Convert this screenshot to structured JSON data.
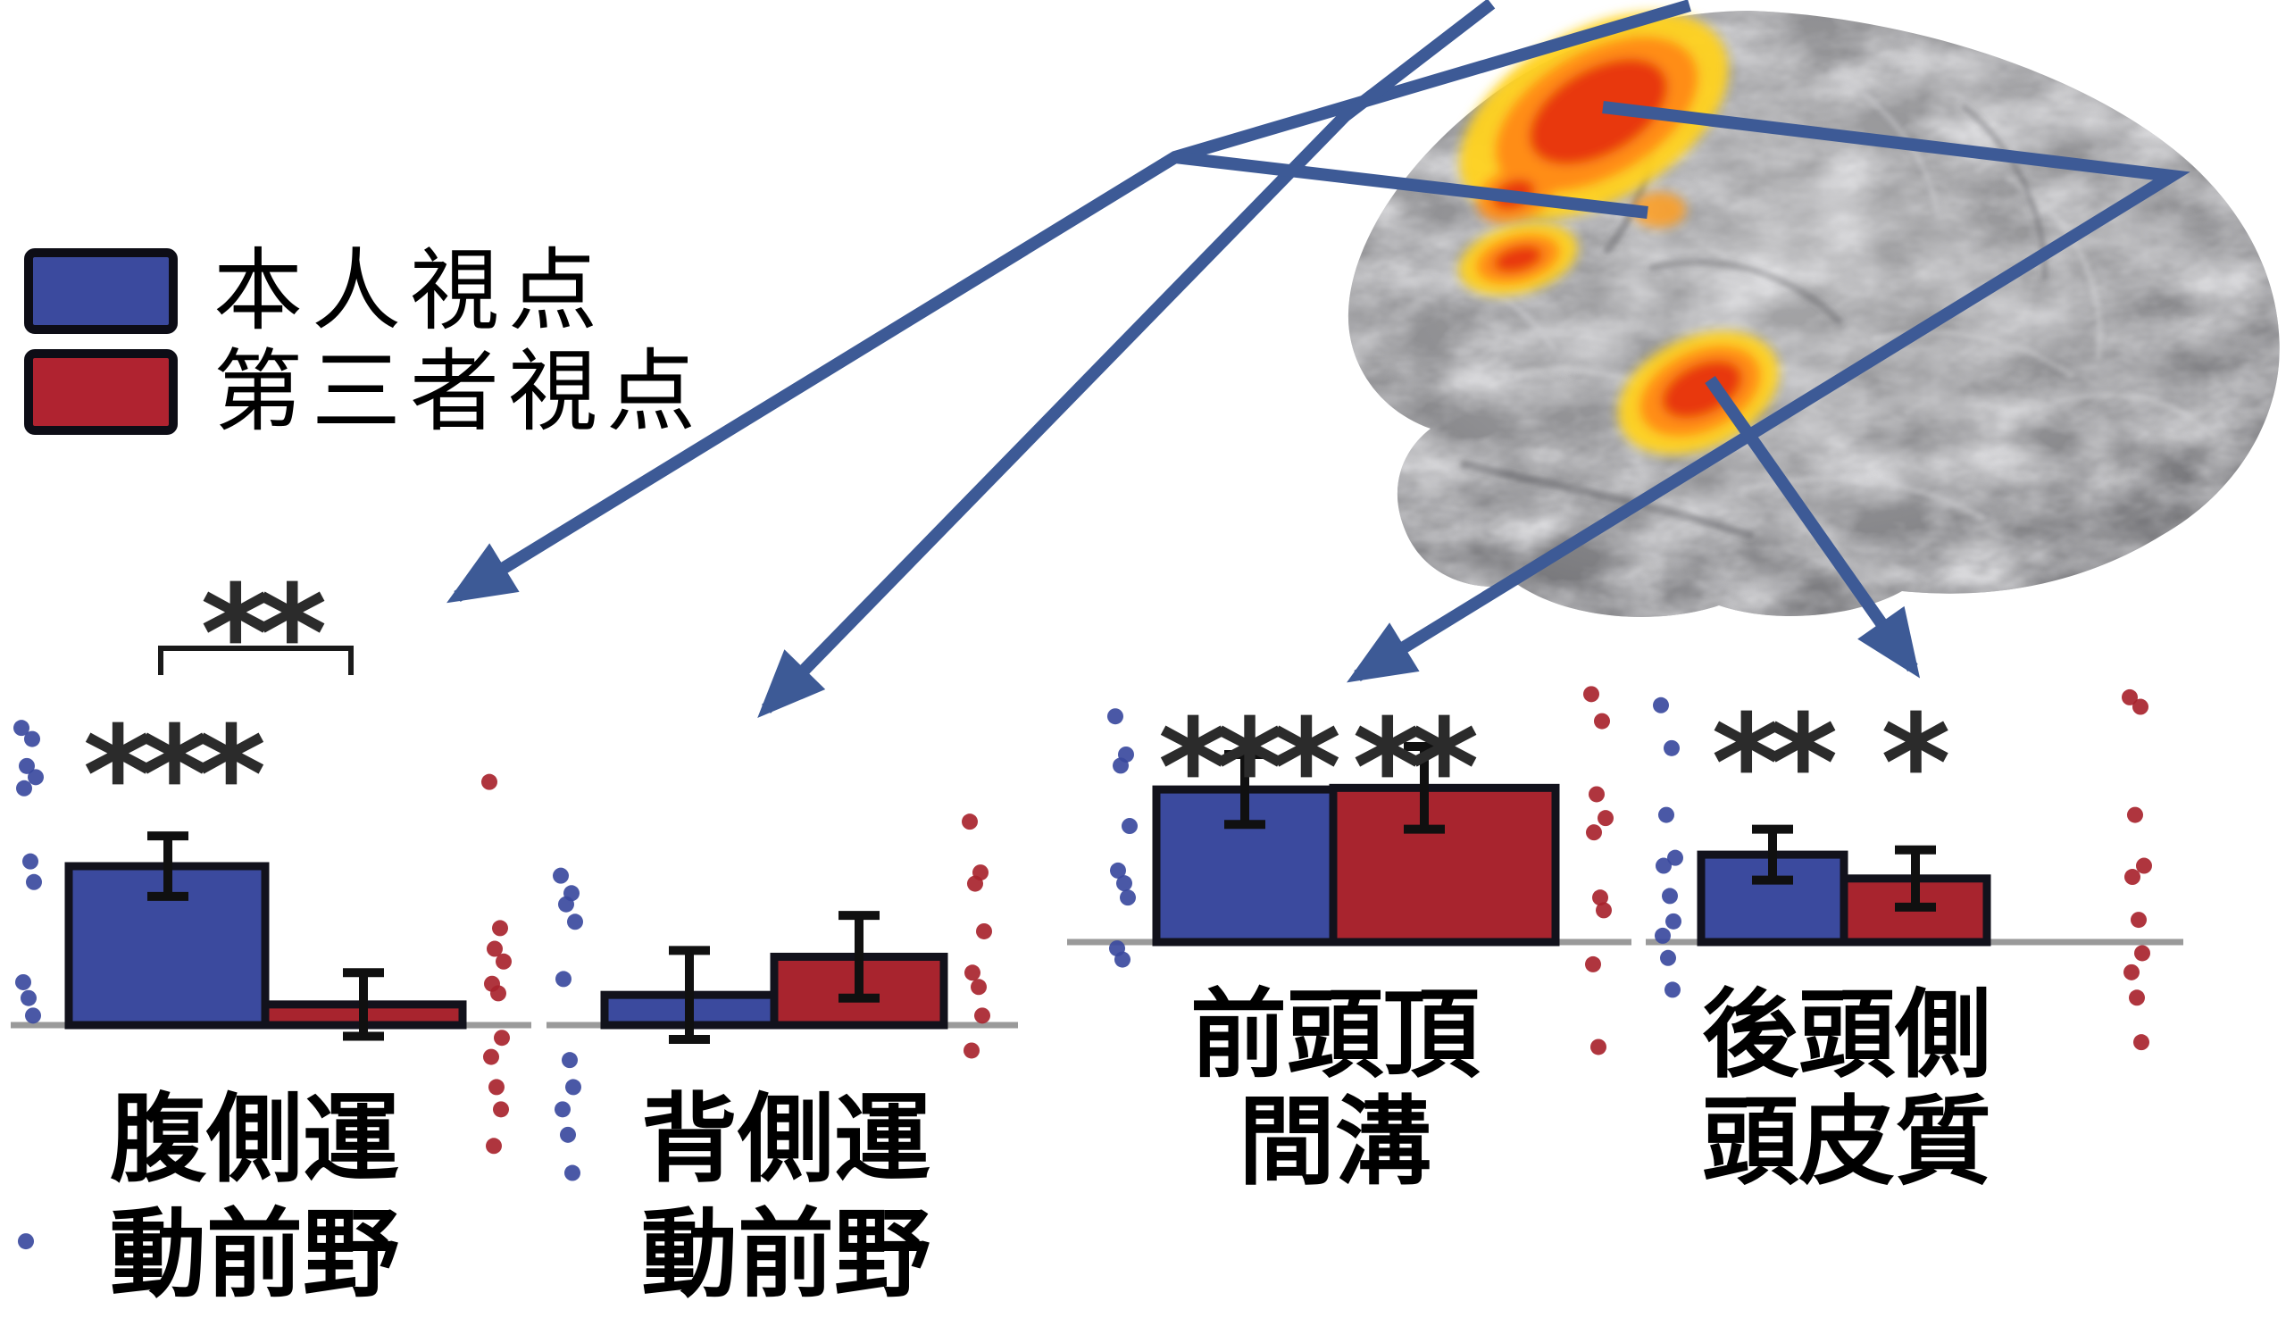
{
  "legend": {
    "items": [
      {
        "label": "本人視点",
        "color": "#3b4a9e"
      },
      {
        "label": "第三者視点",
        "color": "#b02330"
      }
    ]
  },
  "colors": {
    "first_person": "#3b4a9e",
    "third_person": "#a8242e",
    "arrow": "#3d5a96",
    "activation_core": "#e8380d",
    "activation_mid": "#ff8d18",
    "activation_fringe": "#ffd21c"
  },
  "brain": {
    "description": "lateral brain surface with fMRI activation hotspots",
    "hotspots": [
      "parietal-frontal large cluster",
      "premotor small cluster",
      "occipitotemporal cluster"
    ]
  },
  "chart_data": {
    "type": "bar",
    "units": "normalized response (largest bar = 1.0), no axis ticks shown in figure",
    "series_names": [
      "本人視点",
      "第三者視点"
    ],
    "groups": [
      {
        "region": "腹側運動前野",
        "region_lines": [
          "腹側運",
          "動前野"
        ],
        "values": [
          1.0,
          0.13
        ],
        "errors": [
          0.19,
          0.2
        ],
        "significance": [
          "***",
          ""
        ],
        "comparison": "**",
        "points_first": [
          1.87,
          1.8,
          1.63,
          1.56,
          1.49,
          1.03,
          0.9,
          0.27,
          0.17,
          0.06,
          -1.36
        ],
        "points_third": [
          1.53,
          0.61,
          0.48,
          0.4,
          0.26,
          0.2,
          -0.08,
          -0.2,
          -0.39,
          -0.53,
          -0.76
        ]
      },
      {
        "region": "背側運動前野",
        "region_lines": [
          "背側運",
          "動前野"
        ],
        "values": [
          0.19,
          0.43
        ],
        "errors": [
          0.28,
          0.26
        ],
        "significance": [
          "",
          ""
        ],
        "comparison": "",
        "points_first": [
          0.94,
          0.83,
          0.76,
          0.65,
          0.29,
          -0.22,
          -0.39,
          -0.53,
          -0.69,
          -0.93
        ],
        "points_third": [
          1.28,
          0.96,
          0.89,
          0.59,
          0.33,
          0.24,
          0.06,
          -0.16
        ]
      },
      {
        "region": "前頭頂間溝",
        "region_lines": [
          "前頭頂",
          "間溝"
        ],
        "values": [
          0.96,
          0.97
        ],
        "errors": [
          0.22,
          0.26
        ],
        "significance": [
          "***",
          "**"
        ],
        "comparison": "",
        "points_first": [
          1.42,
          1.18,
          1.11,
          0.73,
          0.45,
          0.37,
          0.28,
          -0.04,
          -0.11
        ],
        "points_third": [
          1.56,
          1.39,
          0.93,
          0.78,
          0.69,
          0.28,
          0.2,
          -0.14,
          -0.66
        ]
      },
      {
        "region": "後頭側頭皮質",
        "region_lines": [
          "後頭側",
          "頭皮質"
        ],
        "values": [
          0.55,
          0.4
        ],
        "errors": [
          0.16,
          0.18
        ],
        "significance": [
          "**",
          "*"
        ],
        "comparison": "",
        "points_first": [
          1.49,
          1.22,
          0.8,
          0.53,
          0.48,
          0.29,
          0.13,
          0.04,
          -0.1,
          -0.3
        ],
        "points_third": [
          1.54,
          1.48,
          0.8,
          0.48,
          0.41,
          0.14,
          -0.07,
          -0.19,
          -0.35,
          -0.63
        ]
      }
    ]
  }
}
